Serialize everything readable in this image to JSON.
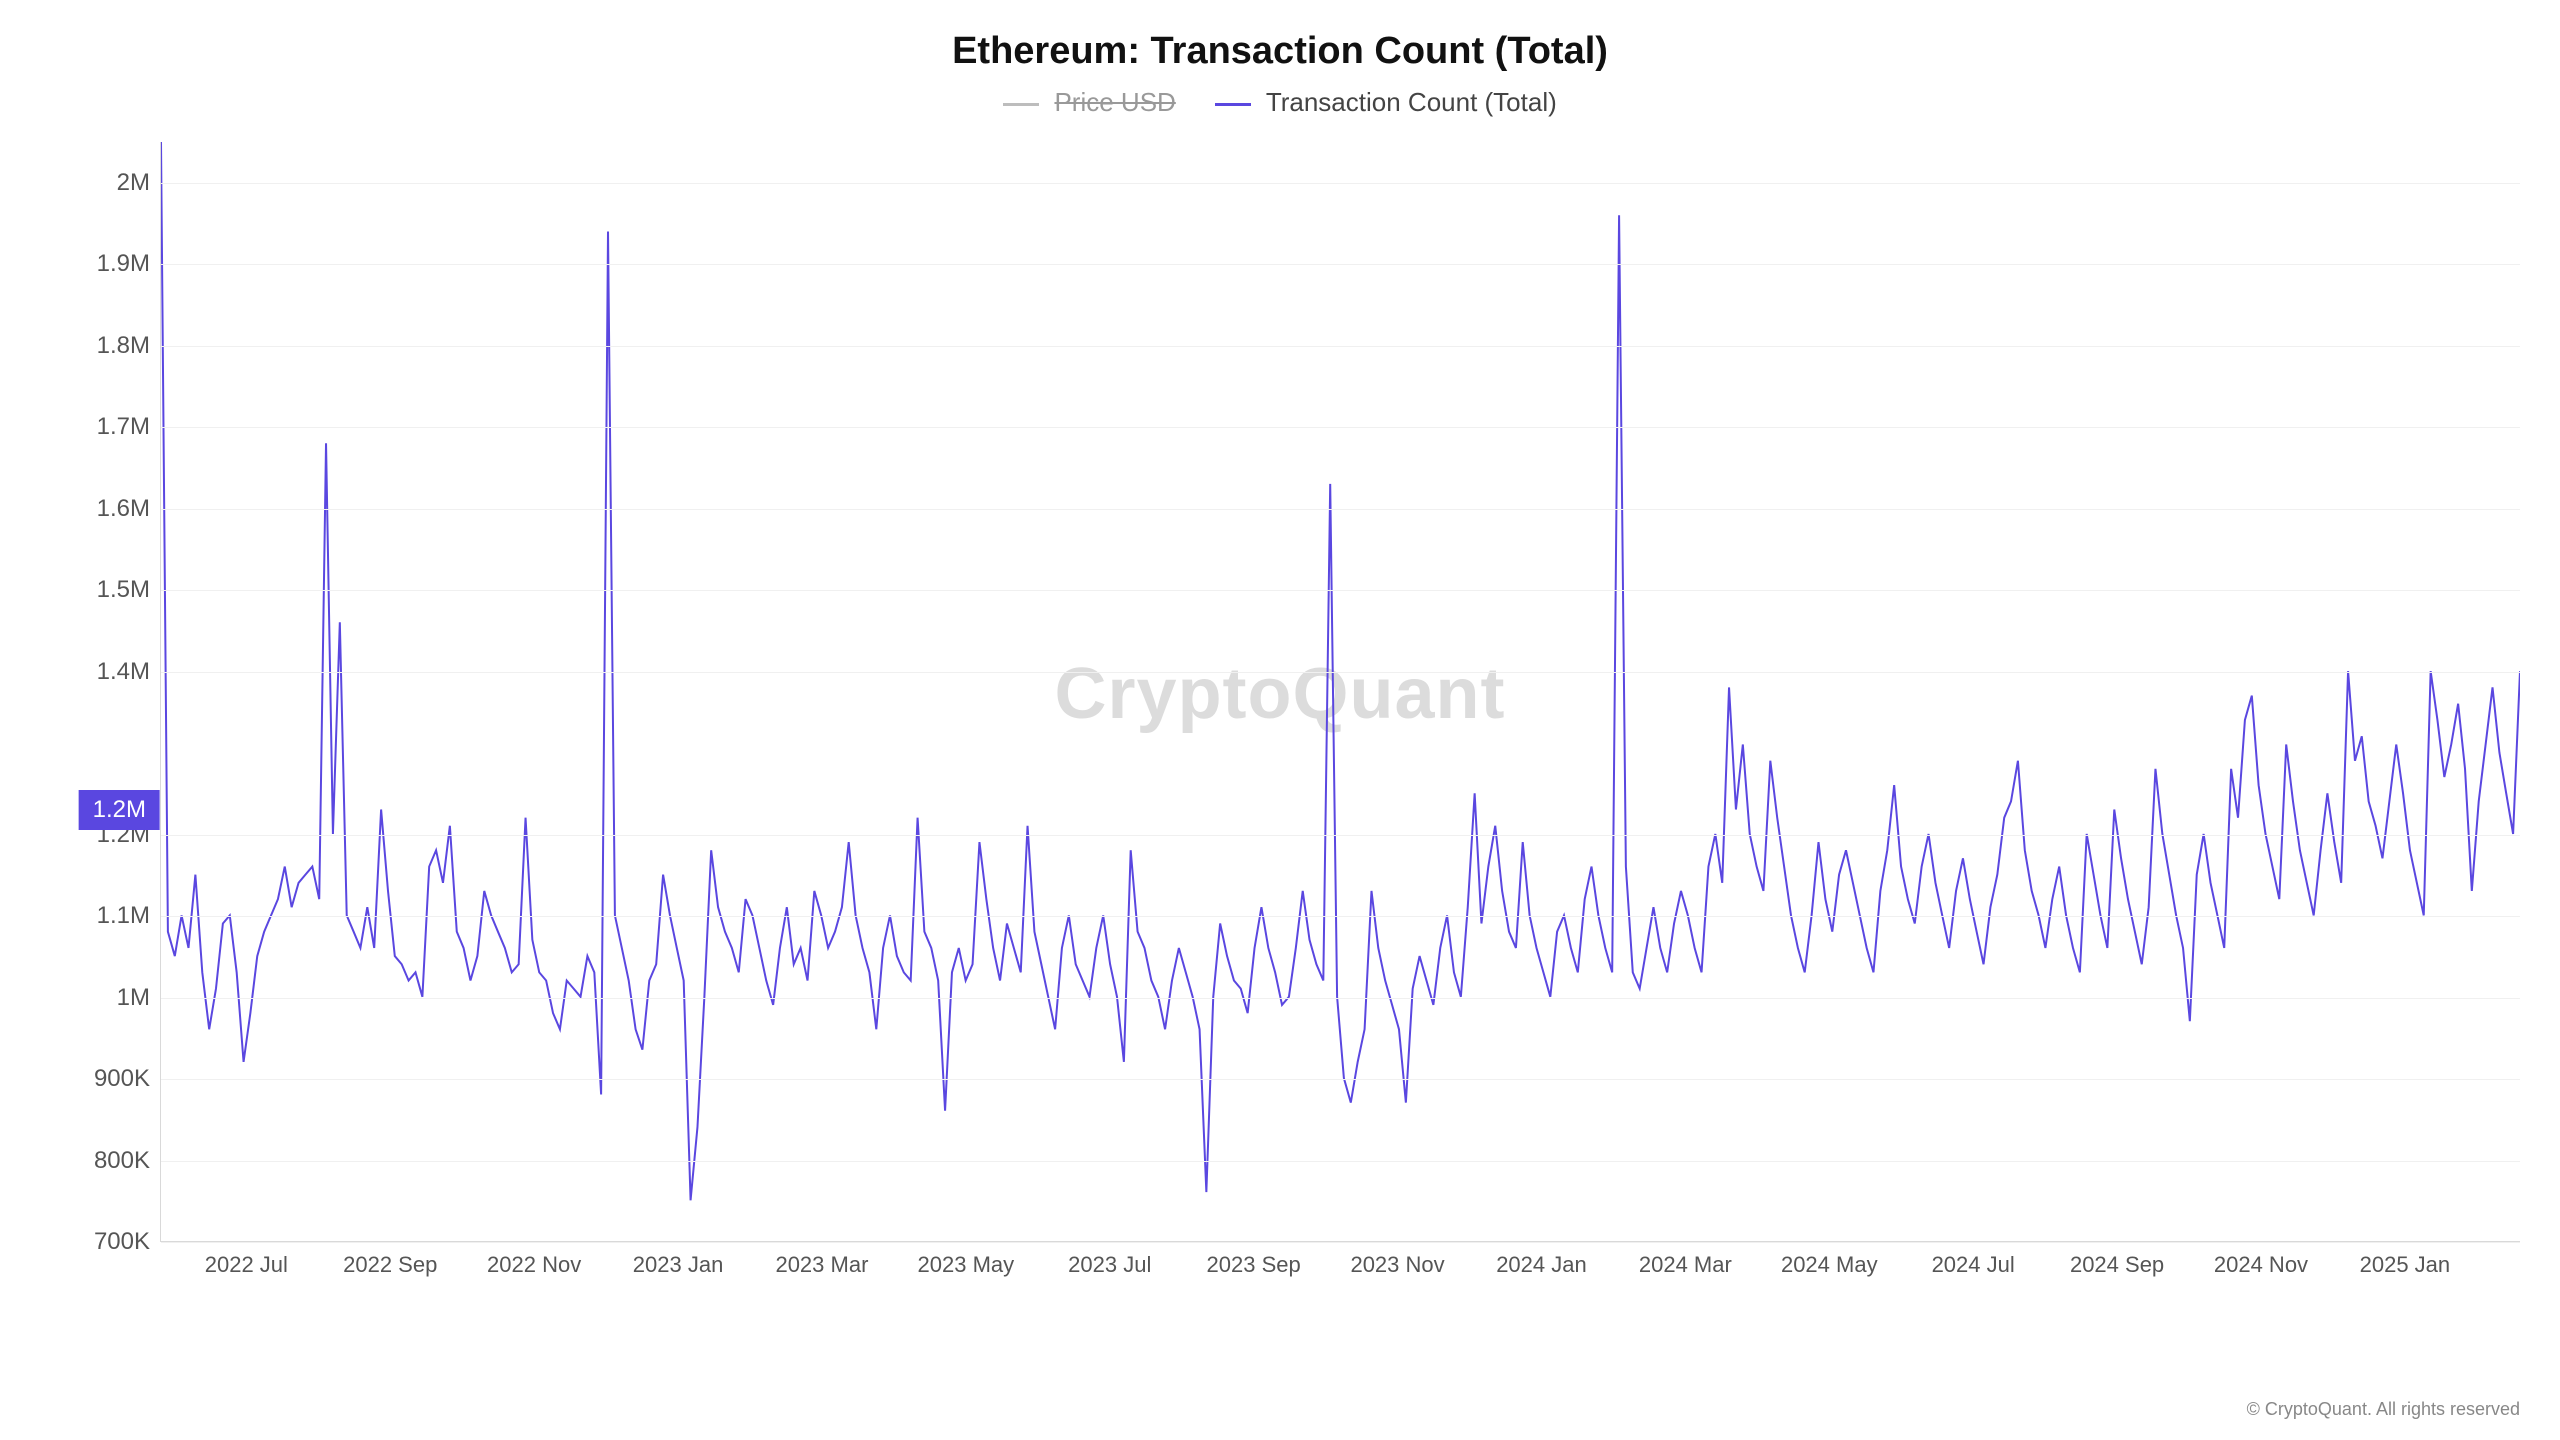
{
  "chart": {
    "type": "line",
    "title": "Ethereum: Transaction Count (Total)",
    "title_fontsize": 38,
    "background_color": "#ffffff",
    "grid_color": "#f0f0f0",
    "axis_color": "#d9d9d9",
    "label_color": "#555555",
    "watermark": "CryptoQuant",
    "watermark_color": "#dcdcdc",
    "copyright": "© CryptoQuant. All rights reserved",
    "legend": [
      {
        "label": "Price USD",
        "color": "#bdbdbd",
        "disabled": true
      },
      {
        "label": "Transaction Count (Total)",
        "color": "#5a47e0",
        "disabled": false
      }
    ],
    "y_axis": {
      "min": 700000,
      "max": 2050000,
      "ticks": [
        {
          "value": 700000,
          "label": "700K"
        },
        {
          "value": 800000,
          "label": "800K"
        },
        {
          "value": 900000,
          "label": "900K"
        },
        {
          "value": 1000000,
          "label": "1M"
        },
        {
          "value": 1100000,
          "label": "1.1M"
        },
        {
          "value": 1200000,
          "label": "1.2M"
        },
        {
          "value": 1400000,
          "label": "1.4M"
        },
        {
          "value": 1500000,
          "label": "1.5M"
        },
        {
          "value": 1600000,
          "label": "1.6M"
        },
        {
          "value": 1700000,
          "label": "1.7M"
        },
        {
          "value": 1800000,
          "label": "1.8M"
        },
        {
          "value": 1900000,
          "label": "1.9M"
        },
        {
          "value": 2000000,
          "label": "2M"
        }
      ],
      "marker": {
        "value": 1230000,
        "label": "1.2M"
      }
    },
    "x_axis": {
      "labels": [
        "2022 Jul",
        "2022 Sep",
        "2022 Nov",
        "2023 Jan",
        "2023 Mar",
        "2023 May",
        "2023 Jul",
        "2023 Sep",
        "2023 Nov",
        "2024 Jan",
        "2024 Mar",
        "2024 May",
        "2024 Jul",
        "2024 Sep",
        "2024 Nov",
        "2025 Jan"
      ]
    },
    "series": {
      "color": "#5a47e0",
      "line_width": 2,
      "values": [
        2050000,
        1080000,
        1050000,
        1100000,
        1060000,
        1150000,
        1030000,
        960000,
        1010000,
        1090000,
        1100000,
        1030000,
        920000,
        980000,
        1050000,
        1080000,
        1100000,
        1120000,
        1160000,
        1110000,
        1140000,
        1150000,
        1160000,
        1120000,
        1680000,
        1200000,
        1460000,
        1100000,
        1080000,
        1060000,
        1110000,
        1060000,
        1230000,
        1130000,
        1050000,
        1040000,
        1020000,
        1030000,
        1000000,
        1160000,
        1180000,
        1140000,
        1210000,
        1080000,
        1060000,
        1020000,
        1050000,
        1130000,
        1100000,
        1080000,
        1060000,
        1030000,
        1040000,
        1220000,
        1070000,
        1030000,
        1020000,
        980000,
        960000,
        1020000,
        1010000,
        1000000,
        1050000,
        1030000,
        880000,
        1940000,
        1100000,
        1060000,
        1020000,
        960000,
        935000,
        1020000,
        1040000,
        1150000,
        1100000,
        1060000,
        1020000,
        750000,
        840000,
        1000000,
        1180000,
        1110000,
        1080000,
        1060000,
        1030000,
        1120000,
        1100000,
        1060000,
        1020000,
        990000,
        1060000,
        1110000,
        1040000,
        1060000,
        1020000,
        1130000,
        1100000,
        1060000,
        1080000,
        1110000,
        1190000,
        1100000,
        1060000,
        1030000,
        960000,
        1060000,
        1100000,
        1050000,
        1030000,
        1020000,
        1220000,
        1080000,
        1060000,
        1020000,
        860000,
        1030000,
        1060000,
        1020000,
        1040000,
        1190000,
        1120000,
        1060000,
        1020000,
        1090000,
        1060000,
        1030000,
        1210000,
        1080000,
        1040000,
        1000000,
        960000,
        1060000,
        1100000,
        1040000,
        1020000,
        1000000,
        1060000,
        1100000,
        1040000,
        1000000,
        920000,
        1180000,
        1080000,
        1060000,
        1020000,
        1000000,
        960000,
        1020000,
        1060000,
        1030000,
        1000000,
        960000,
        760000,
        1000000,
        1090000,
        1050000,
        1020000,
        1010000,
        980000,
        1060000,
        1110000,
        1060000,
        1030000,
        990000,
        1000000,
        1060000,
        1130000,
        1070000,
        1040000,
        1020000,
        1630000,
        1000000,
        900000,
        870000,
        920000,
        960000,
        1130000,
        1060000,
        1020000,
        990000,
        960000,
        870000,
        1010000,
        1050000,
        1020000,
        990000,
        1060000,
        1100000,
        1030000,
        1000000,
        1110000,
        1250000,
        1090000,
        1160000,
        1210000,
        1130000,
        1080000,
        1060000,
        1190000,
        1100000,
        1060000,
        1030000,
        1000000,
        1080000,
        1100000,
        1060000,
        1030000,
        1120000,
        1160000,
        1100000,
        1060000,
        1030000,
        1960000,
        1160000,
        1030000,
        1010000,
        1060000,
        1110000,
        1060000,
        1030000,
        1090000,
        1130000,
        1100000,
        1060000,
        1030000,
        1160000,
        1200000,
        1140000,
        1380000,
        1230000,
        1310000,
        1200000,
        1160000,
        1130000,
        1290000,
        1220000,
        1160000,
        1100000,
        1060000,
        1030000,
        1100000,
        1190000,
        1120000,
        1080000,
        1150000,
        1180000,
        1140000,
        1100000,
        1060000,
        1030000,
        1130000,
        1180000,
        1260000,
        1160000,
        1120000,
        1090000,
        1160000,
        1200000,
        1140000,
        1100000,
        1060000,
        1130000,
        1170000,
        1120000,
        1080000,
        1040000,
        1110000,
        1150000,
        1220000,
        1240000,
        1290000,
        1180000,
        1130000,
        1100000,
        1060000,
        1120000,
        1160000,
        1100000,
        1060000,
        1030000,
        1200000,
        1150000,
        1100000,
        1060000,
        1230000,
        1170000,
        1120000,
        1080000,
        1040000,
        1110000,
        1280000,
        1200000,
        1150000,
        1100000,
        1060000,
        970000,
        1150000,
        1200000,
        1140000,
        1100000,
        1060000,
        1280000,
        1220000,
        1340000,
        1370000,
        1260000,
        1200000,
        1160000,
        1120000,
        1310000,
        1240000,
        1180000,
        1140000,
        1100000,
        1180000,
        1250000,
        1190000,
        1140000,
        1400000,
        1290000,
        1320000,
        1240000,
        1210000,
        1170000,
        1240000,
        1310000,
        1250000,
        1180000,
        1140000,
        1100000,
        1400000,
        1340000,
        1270000,
        1310000,
        1360000,
        1280000,
        1130000,
        1240000,
        1310000,
        1380000,
        1300000,
        1250000,
        1200000,
        1400000
      ]
    }
  }
}
